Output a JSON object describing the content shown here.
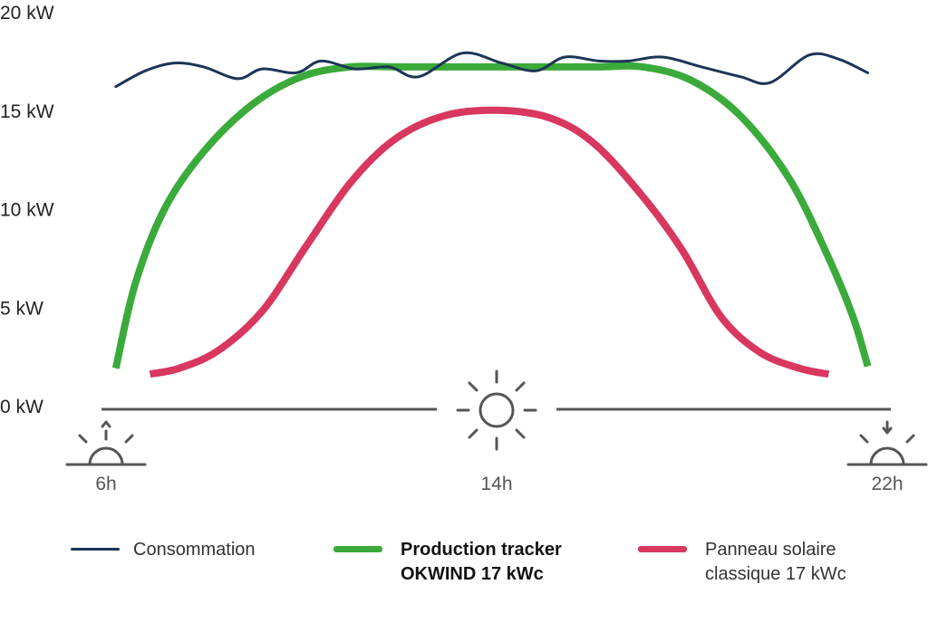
{
  "chart_data": {
    "type": "line",
    "title": "",
    "xlabel": "",
    "ylabel": "",
    "y_unit": "kW",
    "ylim": [
      0,
      20
    ],
    "xlim": [
      6,
      22
    ],
    "y_ticks": [
      {
        "value": 0,
        "label": "0 kW"
      },
      {
        "value": 5,
        "label": "5 kW"
      },
      {
        "value": 10,
        "label": "10 kW"
      },
      {
        "value": 15,
        "label": "15 kW"
      },
      {
        "value": 20,
        "label": "20 kW"
      }
    ],
    "x_ticks": [
      {
        "value": 6,
        "label": "6h",
        "icon": "sunrise-icon"
      },
      {
        "value": 14,
        "label": "14h",
        "icon": "sun-icon"
      },
      {
        "value": 22,
        "label": "22h",
        "icon": "sunset-icon"
      }
    ],
    "grid": false,
    "legend_position": "bottom",
    "series": [
      {
        "name": "Consommation",
        "color": "#1c3557",
        "width": 3,
        "points": [
          [
            6.2,
            16.2
          ],
          [
            6.8,
            17.0
          ],
          [
            7.4,
            17.4
          ],
          [
            8.0,
            17.2
          ],
          [
            8.7,
            16.6
          ],
          [
            9.2,
            17.1
          ],
          [
            9.9,
            16.9
          ],
          [
            10.4,
            17.5
          ],
          [
            11.1,
            17.1
          ],
          [
            11.8,
            17.2
          ],
          [
            12.4,
            16.7
          ],
          [
            13.3,
            17.9
          ],
          [
            14.1,
            17.4
          ],
          [
            14.8,
            17.0
          ],
          [
            15.4,
            17.7
          ],
          [
            16.1,
            17.5
          ],
          [
            16.7,
            17.5
          ],
          [
            17.4,
            17.7
          ],
          [
            18.2,
            17.2
          ],
          [
            19.0,
            16.7
          ],
          [
            19.6,
            16.4
          ],
          [
            20.4,
            17.8
          ],
          [
            21.0,
            17.6
          ],
          [
            21.6,
            16.9
          ]
        ]
      },
      {
        "name": "Production tracker\nOKWIND 17 kWc",
        "color": "#3aab3a",
        "width": 8,
        "points": [
          [
            6.2,
            1.9
          ],
          [
            6.6,
            6.2
          ],
          [
            7.2,
            10.0
          ],
          [
            8.0,
            12.9
          ],
          [
            9.0,
            15.3
          ],
          [
            10.0,
            16.7
          ],
          [
            11.0,
            17.2
          ],
          [
            12.0,
            17.2
          ],
          [
            14.0,
            17.2
          ],
          [
            16.0,
            17.2
          ],
          [
            17.0,
            17.2
          ],
          [
            18.0,
            16.5
          ],
          [
            19.0,
            14.7
          ],
          [
            20.0,
            11.5
          ],
          [
            20.8,
            7.5
          ],
          [
            21.3,
            4.5
          ],
          [
            21.6,
            2.0
          ]
        ]
      },
      {
        "name": "Panneau solaire\nclassique 17 kWc",
        "color": "#d8375f",
        "width": 8,
        "points": [
          [
            6.9,
            1.6
          ],
          [
            7.5,
            1.9
          ],
          [
            8.3,
            2.8
          ],
          [
            9.2,
            4.8
          ],
          [
            10.1,
            8.1
          ],
          [
            11.0,
            11.3
          ],
          [
            11.9,
            13.5
          ],
          [
            12.9,
            14.7
          ],
          [
            14.0,
            15.0
          ],
          [
            15.1,
            14.6
          ],
          [
            16.0,
            13.3
          ],
          [
            17.0,
            10.6
          ],
          [
            17.8,
            7.9
          ],
          [
            18.6,
            4.5
          ],
          [
            19.4,
            2.7
          ],
          [
            20.2,
            1.9
          ],
          [
            20.8,
            1.6
          ]
        ]
      }
    ]
  }
}
